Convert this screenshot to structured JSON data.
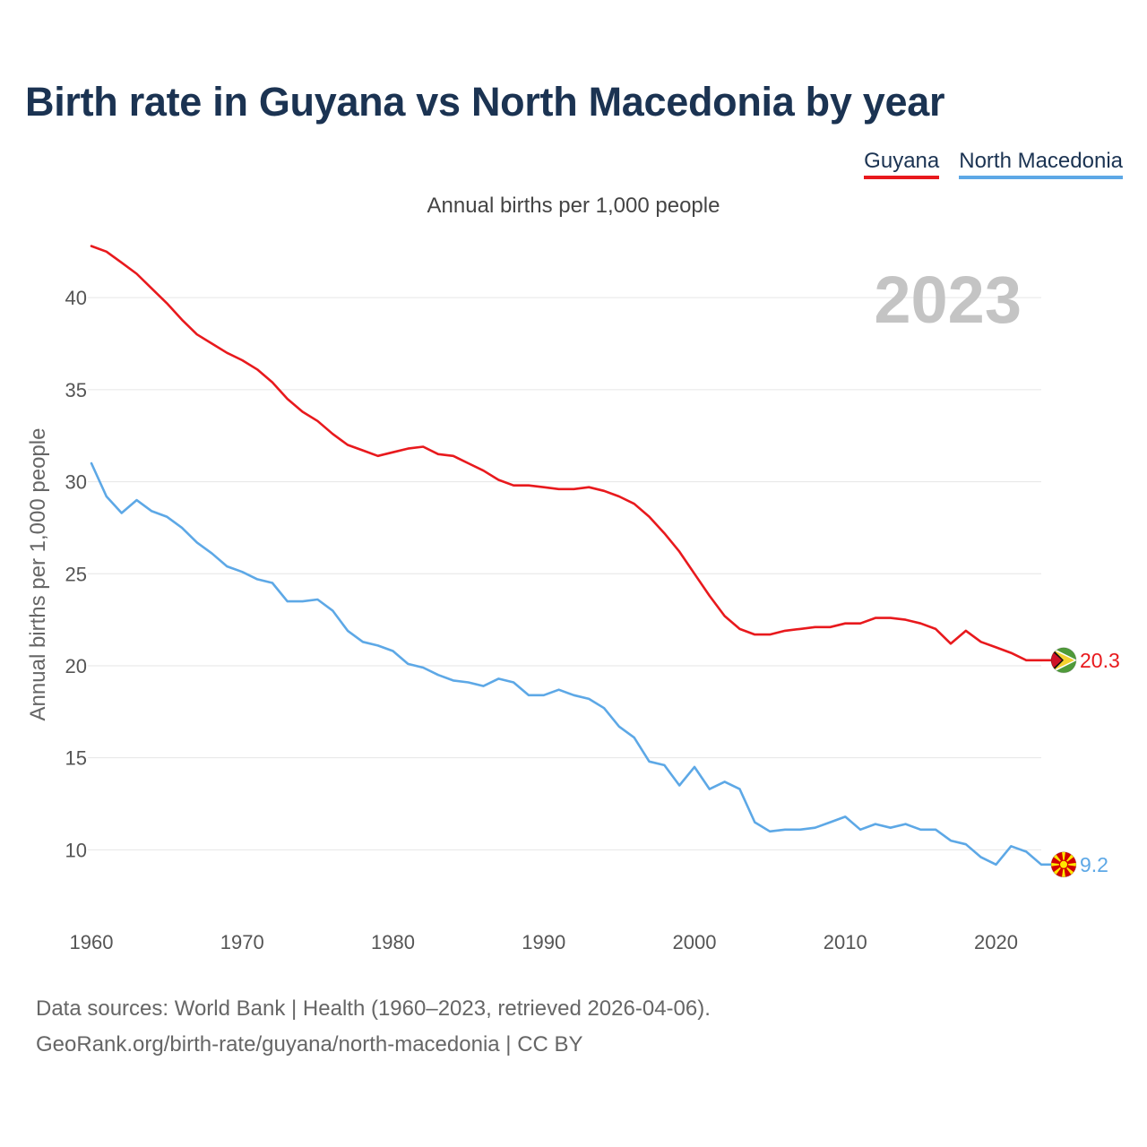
{
  "header": {
    "title": "Birth rate in Guyana vs North Macedonia by year",
    "subtitle": "Annual births per 1,000 people"
  },
  "footer": {
    "sources": "Data sources: World Bank | Health (1960–2023, retrieved 2026-04-06).",
    "credit": "GeoRank.org/birth-rate/guyana/north-macedonia | CC BY"
  },
  "chart_data": {
    "type": "line",
    "title": "Birth rate in Guyana vs North Macedonia by year",
    "subtitle": "Annual births per 1,000 people",
    "ylabel": "Annual births per 1,000 people",
    "xlabel": "",
    "year_label": "2023",
    "xlim": [
      1960,
      2023
    ],
    "ylim": [
      7,
      44
    ],
    "x_ticks": [
      1960,
      1970,
      1980,
      1990,
      2000,
      2010,
      2020
    ],
    "y_ticks": [
      10,
      15,
      20,
      25,
      30,
      35,
      40
    ],
    "grid": true,
    "legend_position": "top-right",
    "x": [
      1960,
      1961,
      1962,
      1963,
      1964,
      1965,
      1966,
      1967,
      1968,
      1969,
      1970,
      1971,
      1972,
      1973,
      1974,
      1975,
      1976,
      1977,
      1978,
      1979,
      1980,
      1981,
      1982,
      1983,
      1984,
      1985,
      1986,
      1987,
      1988,
      1989,
      1990,
      1991,
      1992,
      1993,
      1994,
      1995,
      1996,
      1997,
      1998,
      1999,
      2000,
      2001,
      2002,
      2003,
      2004,
      2005,
      2006,
      2007,
      2008,
      2009,
      2010,
      2011,
      2012,
      2013,
      2014,
      2015,
      2016,
      2017,
      2018,
      2019,
      2020,
      2021,
      2022,
      2023
    ],
    "series": [
      {
        "name": "Guyana",
        "color": "#e8191d",
        "end_label": "20.3",
        "flag": "guyana-flag",
        "values": [
          42.8,
          42.5,
          41.9,
          41.3,
          40.5,
          39.7,
          38.8,
          38.0,
          37.5,
          37.0,
          36.6,
          36.1,
          35.4,
          34.5,
          33.8,
          33.3,
          32.6,
          32.0,
          31.7,
          31.4,
          31.6,
          31.8,
          31.9,
          31.5,
          31.4,
          31.0,
          30.6,
          30.1,
          29.8,
          29.8,
          29.7,
          29.6,
          29.6,
          29.7,
          29.5,
          29.2,
          28.8,
          28.1,
          27.2,
          26.2,
          25.0,
          23.8,
          22.7,
          22.0,
          21.7,
          21.7,
          21.9,
          22.0,
          22.1,
          22.1,
          22.3,
          22.3,
          22.6,
          22.6,
          22.5,
          22.3,
          22.0,
          21.2,
          21.9,
          21.3,
          21.0,
          20.7,
          20.3,
          20.3
        ]
      },
      {
        "name": "North Macedonia",
        "color": "#5da8e6",
        "end_label": "9.2",
        "flag": "north-macedonia-flag",
        "values": [
          31.0,
          29.2,
          28.3,
          29.0,
          28.4,
          28.1,
          27.5,
          26.7,
          26.1,
          25.4,
          25.1,
          24.7,
          24.5,
          23.5,
          23.5,
          23.6,
          23.0,
          21.9,
          21.3,
          21.1,
          20.8,
          20.1,
          19.9,
          19.5,
          19.2,
          19.1,
          18.9,
          19.3,
          19.1,
          18.4,
          18.4,
          18.7,
          18.4,
          18.2,
          17.7,
          16.7,
          16.1,
          14.8,
          14.6,
          13.5,
          14.5,
          13.3,
          13.7,
          13.3,
          11.5,
          11.0,
          11.1,
          11.1,
          11.2,
          11.5,
          11.8,
          11.1,
          11.4,
          11.2,
          11.4,
          11.1,
          11.1,
          10.5,
          10.3,
          9.6,
          9.2,
          10.2,
          9.9,
          9.2
        ]
      }
    ]
  }
}
